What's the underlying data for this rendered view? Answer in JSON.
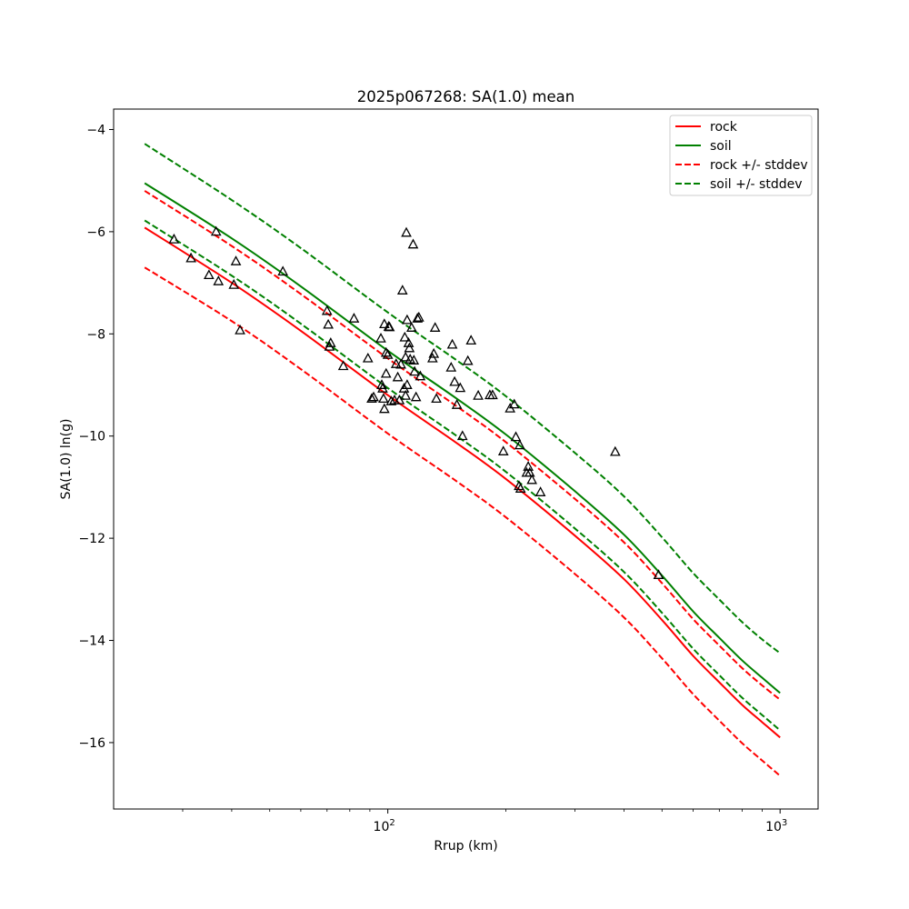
{
  "chart_data": {
    "type": "scatter",
    "title": "2025p067268: SA(1.0) mean",
    "xlabel": "Rrup (km)",
    "ylabel": "SA(1.0) ln(g)",
    "xscale": "log",
    "xlim": [
      20,
      1250
    ],
    "ylim": [
      -17.3,
      -3.6
    ],
    "yticks": [
      -16,
      -14,
      -12,
      -10,
      -8,
      -6,
      -4
    ],
    "yticklabels": [
      "−16",
      "−14",
      "−12",
      "−10",
      "−8",
      "−6",
      "−4"
    ],
    "xticks": [
      {
        "value": 100,
        "base": "10",
        "exp": "2"
      },
      {
        "value": 1000,
        "base": "10",
        "exp": "3"
      }
    ],
    "xminorticks": [
      30,
      40,
      50,
      60,
      70,
      80,
      90,
      200,
      300,
      400,
      500,
      600,
      700,
      800,
      900
    ],
    "grid": false,
    "legend_position": "top-right",
    "colors": {
      "rock": "#ff0000",
      "soil": "#008000",
      "points": "#000000"
    },
    "series": [
      {
        "name": "rock",
        "style": "solid",
        "color": "#ff0000",
        "x": [
          24,
          40,
          60,
          100,
          150,
          200,
          300,
          400,
          500,
          600,
          700,
          800,
          900,
          1000
        ],
        "y": [
          -5.92,
          -7.0,
          -7.94,
          -9.2,
          -10.14,
          -10.84,
          -11.95,
          -12.8,
          -13.6,
          -14.3,
          -14.82,
          -15.26,
          -15.6,
          -15.9
        ]
      },
      {
        "name": "soil",
        "style": "solid",
        "color": "#008000",
        "x": [
          24,
          40,
          60,
          100,
          150,
          200,
          300,
          400,
          500,
          600,
          700,
          800,
          900,
          1000
        ],
        "y": [
          -5.05,
          -6.13,
          -7.07,
          -8.33,
          -9.27,
          -9.97,
          -11.08,
          -11.93,
          -12.73,
          -13.43,
          -13.95,
          -14.39,
          -14.73,
          -15.03
        ]
      },
      {
        "name": "rock +/- stddev",
        "style": "dashed",
        "color": "#ff0000",
        "x": [
          24,
          40,
          60,
          100,
          150,
          200,
          300,
          400,
          500,
          600,
          700,
          800,
          900,
          1000
        ],
        "y": [
          -5.2,
          -6.28,
          -7.22,
          -8.48,
          -9.42,
          -10.12,
          -11.23,
          -12.08,
          -12.88,
          -13.58,
          -14.1,
          -14.54,
          -14.88,
          -15.16
        ]
      },
      {
        "name": "",
        "style": "dashed",
        "color": "#ff0000",
        "x": [
          24,
          40,
          60,
          100,
          150,
          200,
          300,
          400,
          500,
          600,
          700,
          800,
          900,
          1000
        ],
        "y": [
          -6.7,
          -7.75,
          -8.69,
          -9.95,
          -10.89,
          -11.59,
          -12.7,
          -13.55,
          -14.35,
          -15.05,
          -15.57,
          -16.01,
          -16.35,
          -16.65
        ]
      },
      {
        "name": "soil +/- stddev",
        "style": "dashed",
        "color": "#008000",
        "x": [
          24,
          40,
          60,
          100,
          150,
          200,
          300,
          400,
          500,
          600,
          700,
          800,
          900,
          1000
        ],
        "y": [
          -4.28,
          -5.38,
          -6.32,
          -7.58,
          -8.52,
          -9.22,
          -10.33,
          -11.18,
          -11.98,
          -12.68,
          -13.2,
          -13.64,
          -13.98,
          -14.25
        ]
      },
      {
        "name": "",
        "style": "dashed",
        "color": "#008000",
        "x": [
          24,
          40,
          60,
          100,
          150,
          200,
          300,
          400,
          500,
          600,
          700,
          800,
          900,
          1000
        ],
        "y": [
          -5.78,
          -6.86,
          -7.8,
          -9.06,
          -10.0,
          -10.7,
          -11.81,
          -12.66,
          -13.46,
          -14.16,
          -14.68,
          -15.12,
          -15.46,
          -15.76
        ]
      }
    ],
    "points": [
      [
        28.5,
        -6.15
      ],
      [
        31.5,
        -6.52
      ],
      [
        35,
        -6.85
      ],
      [
        36.5,
        -6.0
      ],
      [
        37,
        -6.97
      ],
      [
        40.5,
        -7.04
      ],
      [
        41,
        -6.58
      ],
      [
        42,
        -7.93
      ],
      [
        54,
        -6.78
      ],
      [
        70,
        -7.55
      ],
      [
        70.5,
        -7.82
      ],
      [
        71,
        -8.25
      ],
      [
        71.5,
        -8.18
      ],
      [
        77,
        -8.63
      ],
      [
        82,
        -7.7
      ],
      [
        89,
        -8.48
      ],
      [
        91,
        -9.27
      ],
      [
        92,
        -9.24
      ],
      [
        96,
        -8.09
      ],
      [
        96.5,
        -9.0
      ],
      [
        97,
        -9.07
      ],
      [
        97.5,
        -9.27
      ],
      [
        98,
        -9.47
      ],
      [
        98,
        -7.81
      ],
      [
        99,
        -8.78
      ],
      [
        99,
        -8.37
      ],
      [
        100,
        -8.41
      ],
      [
        100.5,
        -7.86
      ],
      [
        101,
        -7.87
      ],
      [
        102,
        -9.32
      ],
      [
        104,
        -9.3
      ],
      [
        105,
        -8.59
      ],
      [
        106,
        -8.85
      ],
      [
        107,
        -9.3
      ],
      [
        108,
        -8.6
      ],
      [
        109,
        -7.15
      ],
      [
        110,
        -9.07
      ],
      [
        110.5,
        -8.07
      ],
      [
        111,
        -8.46
      ],
      [
        111,
        -9.21
      ],
      [
        111.5,
        -6.02
      ],
      [
        112,
        -9.0
      ],
      [
        112,
        -7.73
      ],
      [
        113,
        -8.18
      ],
      [
        113.5,
        -8.28
      ],
      [
        114,
        -8.5
      ],
      [
        115,
        -7.88
      ],
      [
        116,
        -6.25
      ],
      [
        116.5,
        -8.52
      ],
      [
        117,
        -8.74
      ],
      [
        118,
        -9.24
      ],
      [
        119,
        -7.7
      ],
      [
        120,
        -7.68
      ],
      [
        121,
        -8.83
      ],
      [
        130,
        -8.48
      ],
      [
        131,
        -8.39
      ],
      [
        132,
        -7.88
      ],
      [
        133,
        -9.27
      ],
      [
        145,
        -8.66
      ],
      [
        146,
        -8.21
      ],
      [
        148,
        -8.94
      ],
      [
        150,
        -9.39
      ],
      [
        153,
        -9.06
      ],
      [
        155,
        -10.0
      ],
      [
        160,
        -8.53
      ],
      [
        163,
        -8.13
      ],
      [
        170,
        -9.21
      ],
      [
        182,
        -9.2
      ],
      [
        185,
        -9.2
      ],
      [
        197,
        -10.3
      ],
      [
        205,
        -9.46
      ],
      [
        210,
        -9.38
      ],
      [
        212,
        -10.02
      ],
      [
        216,
        -10.98
      ],
      [
        217,
        -10.18
      ],
      [
        218,
        -11.03
      ],
      [
        226,
        -10.72
      ],
      [
        228,
        -10.6
      ],
      [
        230,
        -10.72
      ],
      [
        233,
        -10.86
      ],
      [
        245,
        -11.1
      ],
      [
        380,
        -10.31
      ],
      [
        490,
        -12.72
      ]
    ]
  }
}
